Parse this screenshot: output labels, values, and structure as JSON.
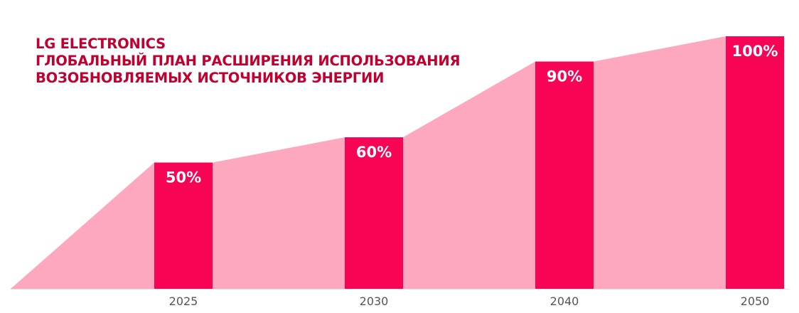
{
  "colors": {
    "bar": "#f70455",
    "area": "#fea8c0",
    "title": "#c0002f",
    "value_label": "#ffffff",
    "tick_label": "#555555",
    "baseline": "#e0e0e0"
  },
  "chart_data": {
    "type": "bar",
    "title": [
      "LG ELECTRONICS",
      "ГЛОБАЛЬНЫЙ ПЛАН РАСШИРЕНИЯ ИСПОЛЬЗОВАНИЯ",
      "ВОЗОБНОВЛЯЕМЫХ ИСТОЧНИКОВ ЭНЕРГИИ"
    ],
    "categories": [
      "2025",
      "2030",
      "2040",
      "2050"
    ],
    "values": [
      50,
      60,
      90,
      100
    ],
    "data_labels": [
      "50%",
      "60%",
      "90%",
      "100%"
    ],
    "area_background": true,
    "xlabel": "",
    "ylabel": "",
    "ylim": [
      0,
      100
    ],
    "grid": false,
    "legend": "none"
  }
}
